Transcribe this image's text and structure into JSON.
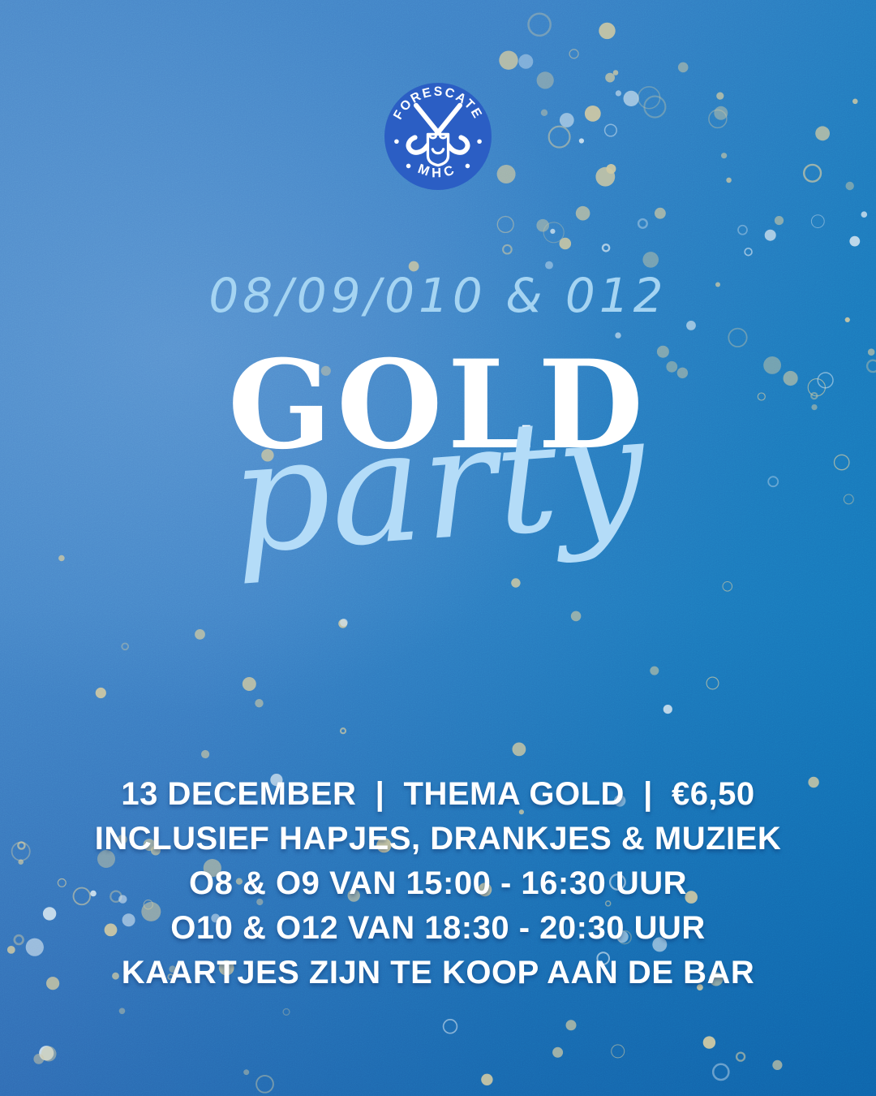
{
  "poster": {
    "logo": {
      "club_name_top": "FORESCATE",
      "club_name_bottom": "MHC"
    },
    "teams_line": "08/09/010 & 012",
    "title": "GOLD",
    "title_script": "party",
    "details": {
      "lines": [
        "13 DECEMBER  |  THEMA GOLD  |  €6,50",
        "INCLUSIEF HAPJES, DRANKJES & MUZIEK",
        "O8 & O9 VAN 15:00 - 16:30 UUR",
        "O10 & O12 VAN 18:30 - 20:30 UUR",
        "KAARTJES ZIJN TE KOOP AAN DE BAR"
      ]
    },
    "colors": {
      "background_top_left": "#4d88c9",
      "background_right": "#0d73b7",
      "background_bottom": "#2e6cb8",
      "logo_blue": "#2b5ec4",
      "accent_light_blue": "#a5d4f2",
      "script_light_blue": "#b4dcf8",
      "title_white": "#ffffff",
      "glitter_gold": "#cfc9a4",
      "glitter_pale": "#d4e4ef"
    }
  }
}
